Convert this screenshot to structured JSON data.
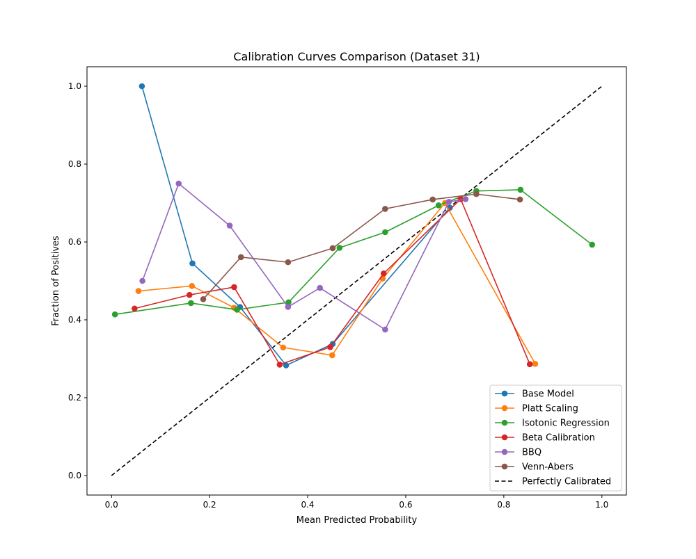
{
  "chart_data": {
    "type": "line",
    "title": "Calibration Curves Comparison (Dataset 31)",
    "xlabel": "Mean Predicted Probability",
    "ylabel": "Fraction of Positives",
    "xlim": [
      -0.05,
      1.05
    ],
    "ylim": [
      -0.05,
      1.05
    ],
    "xticks": [
      0.0,
      0.2,
      0.4,
      0.6,
      0.8,
      1.0
    ],
    "yticks": [
      0.0,
      0.2,
      0.4,
      0.6,
      0.8,
      1.0
    ],
    "xtick_labels": [
      "0.0",
      "0.2",
      "0.4",
      "0.6",
      "0.8",
      "1.0"
    ],
    "ytick_labels": [
      "0.0",
      "0.2",
      "0.4",
      "0.6",
      "0.8",
      "1.0"
    ],
    "grid": false,
    "legend_position": "lower-right",
    "series": [
      {
        "name": "Base Model",
        "color": "#1f77b4",
        "x": [
          0.062,
          0.165,
          0.262,
          0.356,
          0.451,
          0.69
        ],
        "y": [
          1.0,
          0.545,
          0.433,
          0.283,
          0.338,
          0.688
        ]
      },
      {
        "name": "Platt Scaling",
        "color": "#ff7f0e",
        "x": [
          0.055,
          0.164,
          0.25,
          0.35,
          0.45,
          0.553,
          0.68,
          0.864
        ],
        "y": [
          0.474,
          0.487,
          0.431,
          0.329,
          0.309,
          0.506,
          0.7,
          0.287
        ]
      },
      {
        "name": "Isotonic Regression",
        "color": "#2ca02c",
        "x": [
          0.007,
          0.162,
          0.256,
          0.361,
          0.465,
          0.558,
          0.667,
          0.744,
          0.834,
          0.98
        ],
        "y": [
          0.414,
          0.443,
          0.426,
          0.445,
          0.585,
          0.625,
          0.694,
          0.731,
          0.734,
          0.593
        ]
      },
      {
        "name": "Beta Calibration",
        "color": "#d62728",
        "x": [
          0.047,
          0.159,
          0.25,
          0.343,
          0.446,
          0.555,
          0.712,
          0.853
        ],
        "y": [
          0.429,
          0.464,
          0.484,
          0.285,
          0.33,
          0.519,
          0.71,
          0.286
        ]
      },
      {
        "name": "BBQ",
        "color": "#9467bd",
        "x": [
          0.063,
          0.137,
          0.241,
          0.36,
          0.425,
          0.558,
          0.688,
          0.722
        ],
        "y": [
          0.5,
          0.75,
          0.642,
          0.433,
          0.482,
          0.375,
          0.703,
          0.71
        ]
      },
      {
        "name": "Venn-Abers",
        "color": "#8c564b",
        "x": [
          0.187,
          0.264,
          0.36,
          0.451,
          0.558,
          0.655,
          0.744,
          0.833
        ],
        "y": [
          0.453,
          0.561,
          0.548,
          0.584,
          0.685,
          0.709,
          0.723,
          0.709
        ]
      }
    ],
    "reference_line": {
      "name": "Perfectly Calibrated",
      "color": "#000000",
      "style": "dashed",
      "x": [
        0.0,
        1.0
      ],
      "y": [
        0.0,
        1.0
      ]
    }
  }
}
